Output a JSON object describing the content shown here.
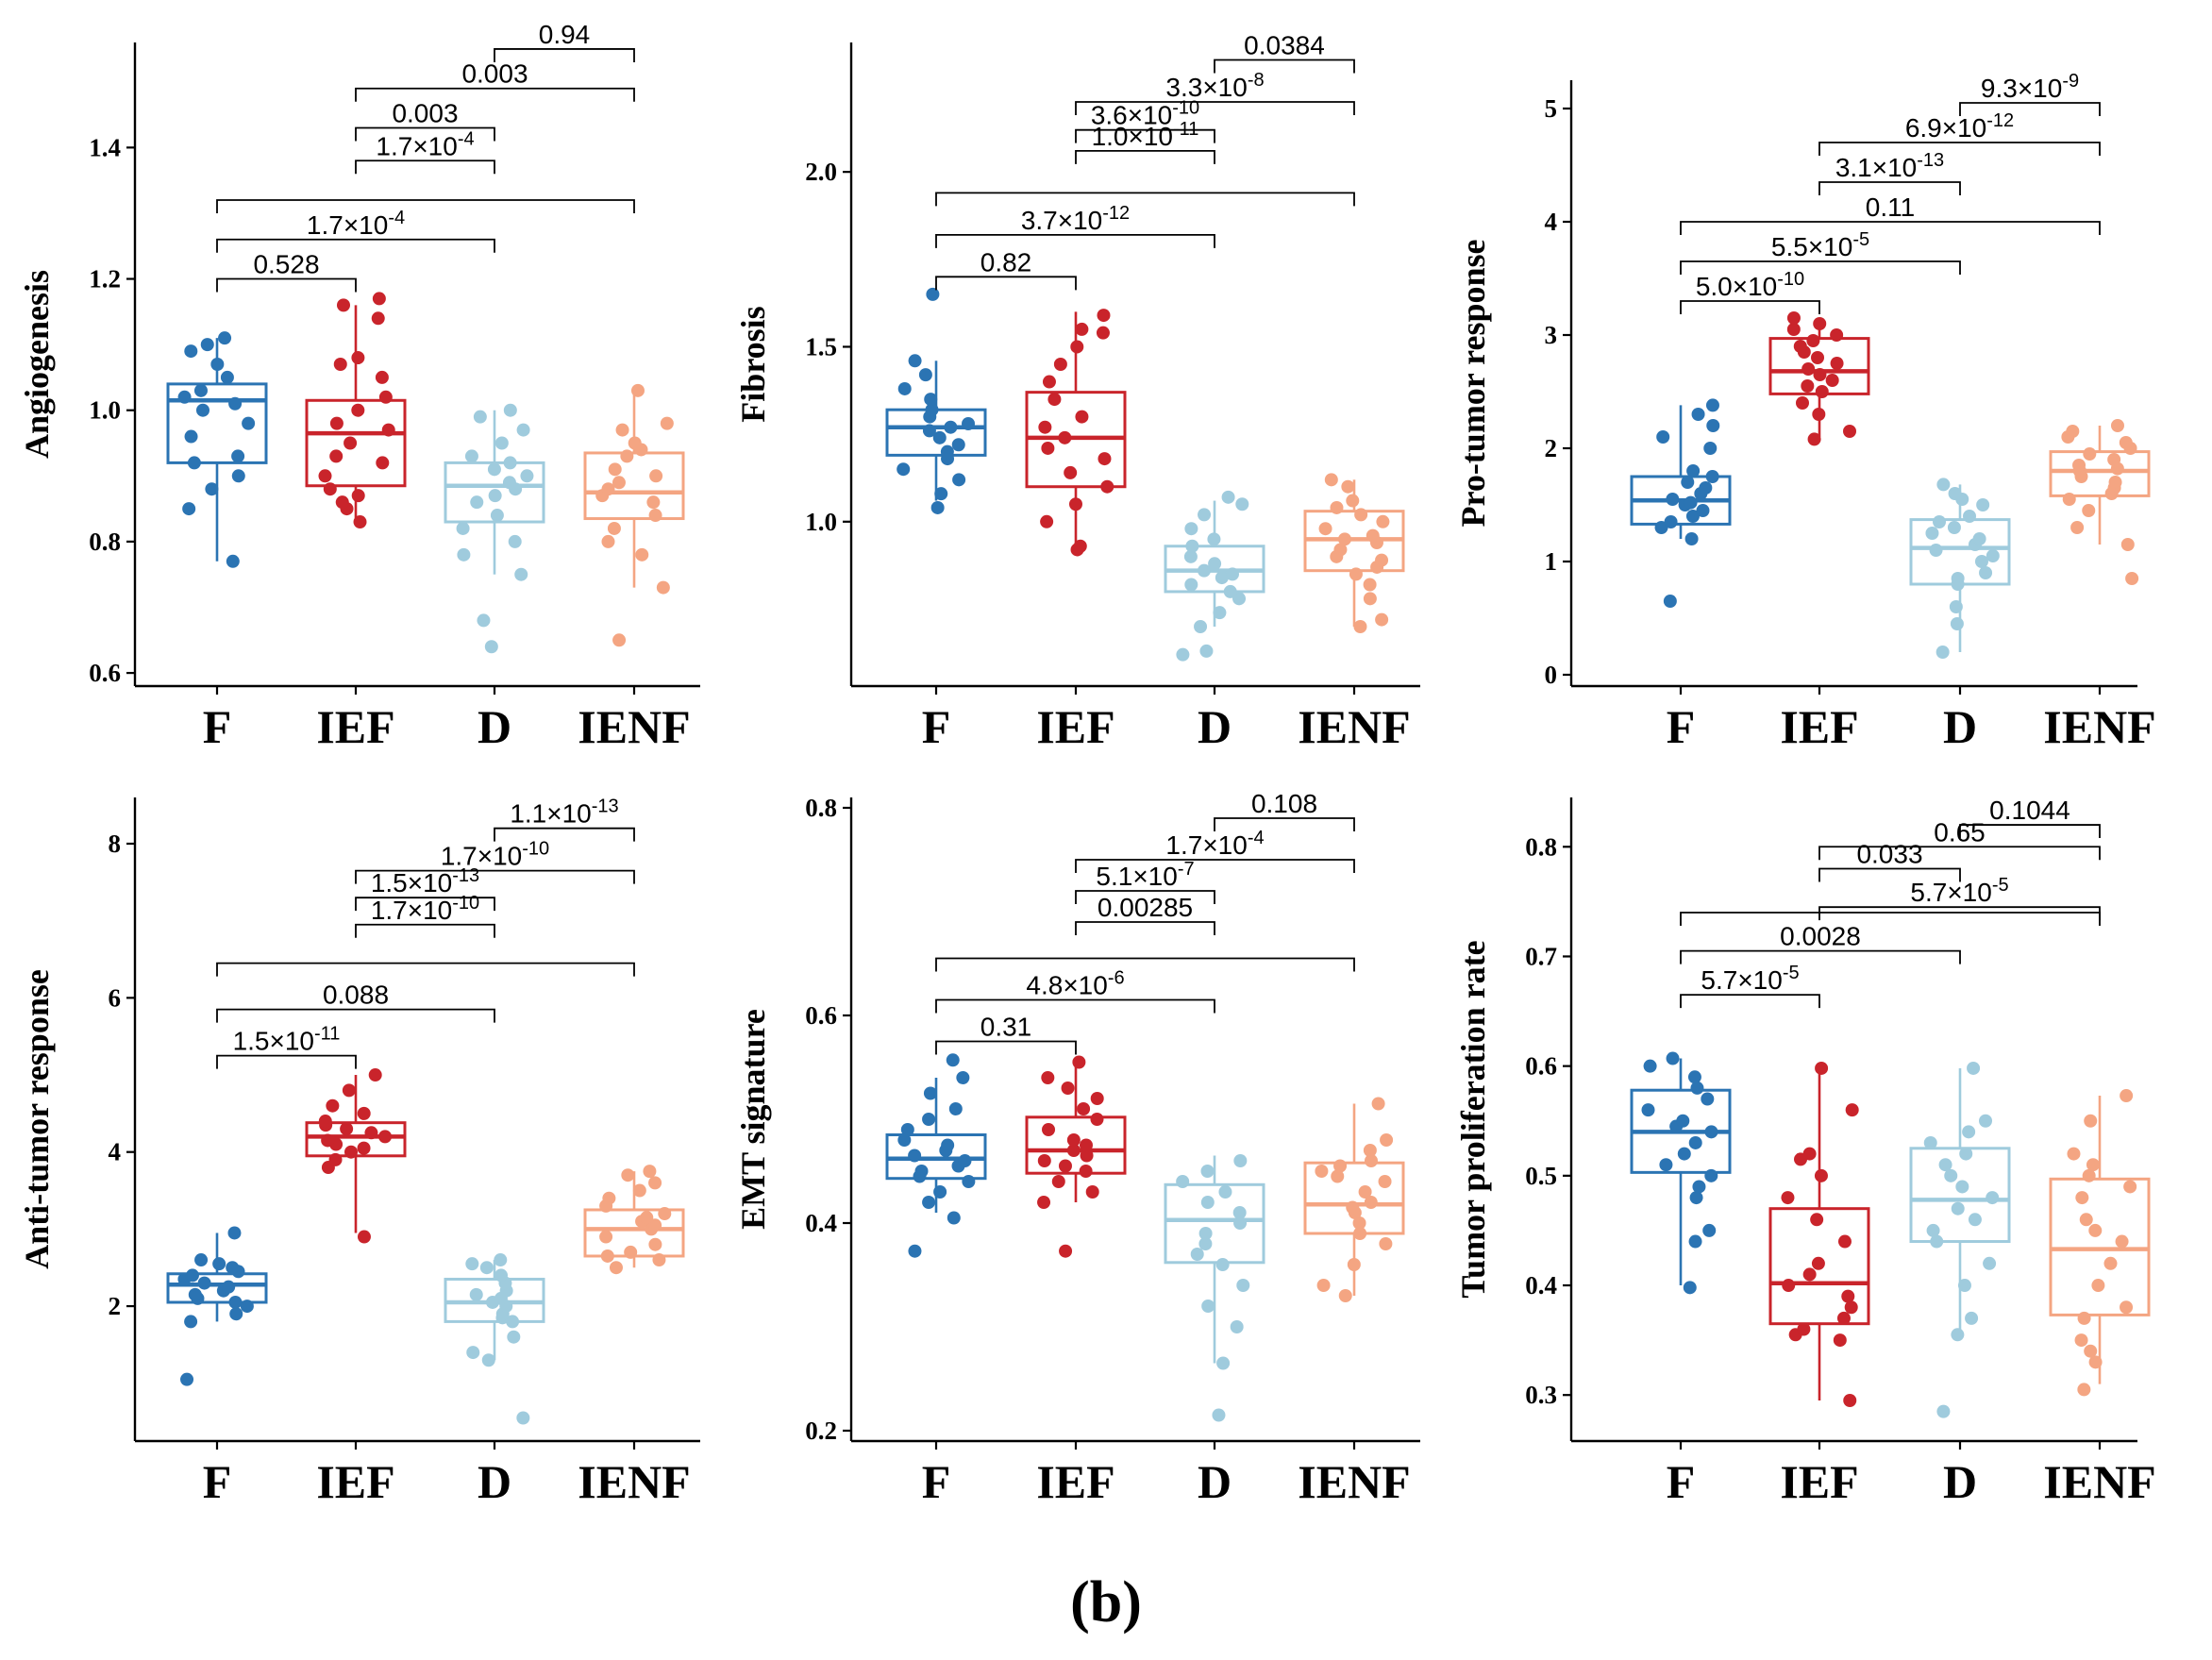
{
  "figure_label": "(b)",
  "colors": {
    "F": "#2b74b3",
    "IEF": "#c9242b",
    "D": "#9fcbdd",
    "IENF": "#f4a582",
    "axis": "#000000"
  },
  "chart_data": [
    {
      "type": "box",
      "title": "",
      "ylabel": "Angiogenesis",
      "categories": [
        "F",
        "IEF",
        "D",
        "IENF"
      ],
      "ylim": [
        0.58,
        1.56
      ],
      "yticks": [
        0.6,
        0.8,
        1.0,
        1.2,
        1.4
      ],
      "ytick_labels": [
        "0.6",
        "0.8",
        "1.0",
        "1.2",
        "1.4"
      ],
      "boxes": [
        {
          "group": "F",
          "whisker_low": 0.77,
          "q1": 0.92,
          "median": 1.015,
          "q3": 1.04,
          "whisker_high": 1.11
        },
        {
          "group": "IEF",
          "whisker_low": 0.83,
          "q1": 0.885,
          "median": 0.965,
          "q3": 1.015,
          "whisker_high": 1.16
        },
        {
          "group": "D",
          "whisker_low": 0.75,
          "q1": 0.83,
          "median": 0.885,
          "q3": 0.92,
          "whisker_high": 1.0
        },
        {
          "group": "IENF",
          "whisker_low": 0.73,
          "q1": 0.835,
          "median": 0.875,
          "q3": 0.935,
          "whisker_high": 1.03
        }
      ],
      "points": [
        [
          0.77,
          0.85,
          0.88,
          0.9,
          0.92,
          0.93,
          0.96,
          0.98,
          1.0,
          1.01,
          1.02,
          1.03,
          1.05,
          1.07,
          1.09,
          1.1,
          1.11
        ],
        [
          0.83,
          0.85,
          0.86,
          0.87,
          0.88,
          0.9,
          0.92,
          0.93,
          0.95,
          0.97,
          0.98,
          1.0,
          1.02,
          1.05,
          1.07,
          1.08,
          1.14,
          1.16,
          1.17
        ],
        [
          0.64,
          0.68,
          0.75,
          0.78,
          0.8,
          0.82,
          0.84,
          0.86,
          0.87,
          0.88,
          0.89,
          0.9,
          0.91,
          0.92,
          0.93,
          0.95,
          0.97,
          0.99,
          1.0
        ],
        [
          0.65,
          0.73,
          0.78,
          0.8,
          0.82,
          0.84,
          0.86,
          0.87,
          0.88,
          0.89,
          0.9,
          0.91,
          0.93,
          0.94,
          0.95,
          0.97,
          0.98,
          1.03
        ]
      ],
      "comparisons": [
        {
          "from": 0,
          "to": 1,
          "y": 1.2,
          "label": "0.528"
        },
        {
          "from": 0,
          "to": 2,
          "y": 1.26,
          "label": "1.7×10",
          "exp": "-4"
        },
        {
          "from": 0,
          "to": 3,
          "y": 1.32,
          "label": "",
          "exp": ""
        },
        {
          "from": 1,
          "to": 2,
          "y": 1.38,
          "label": "1.7×10",
          "exp": "-4"
        },
        {
          "from": 1,
          "to": 2,
          "y": 1.43,
          "label": "0.003"
        },
        {
          "from": 1,
          "to": 3,
          "y": 1.49,
          "label": "0.003"
        },
        {
          "from": 2,
          "to": 3,
          "y": 1.55,
          "label": "0.94"
        }
      ]
    },
    {
      "type": "box",
      "title": "",
      "ylabel": "Fibrosis",
      "categories": [
        "F",
        "IEF",
        "D",
        "IENF"
      ],
      "ylim": [
        0.53,
        2.37
      ],
      "yticks": [
        1.0,
        1.5,
        2.0
      ],
      "ytick_labels": [
        "1.0",
        "1.5",
        "2.0"
      ],
      "boxes": [
        {
          "group": "F",
          "whisker_low": 1.06,
          "q1": 1.19,
          "median": 1.27,
          "q3": 1.32,
          "whisker_high": 1.46
        },
        {
          "group": "IEF",
          "whisker_low": 0.93,
          "q1": 1.1,
          "median": 1.24,
          "q3": 1.37,
          "whisker_high": 1.6
        },
        {
          "group": "D",
          "whisker_low": 0.7,
          "q1": 0.8,
          "median": 0.86,
          "q3": 0.93,
          "whisker_high": 1.06
        },
        {
          "group": "IENF",
          "whisker_low": 0.7,
          "q1": 0.86,
          "median": 0.95,
          "q3": 1.03,
          "whisker_high": 1.12
        }
      ],
      "points": [
        [
          1.04,
          1.08,
          1.12,
          1.15,
          1.18,
          1.2,
          1.22,
          1.24,
          1.26,
          1.27,
          1.28,
          1.3,
          1.32,
          1.35,
          1.38,
          1.42,
          1.46,
          1.65
        ],
        [
          0.92,
          0.93,
          1.0,
          1.05,
          1.1,
          1.14,
          1.18,
          1.21,
          1.24,
          1.27,
          1.3,
          1.35,
          1.4,
          1.45,
          1.5,
          1.54,
          1.55,
          1.59
        ],
        [
          0.62,
          0.63,
          0.7,
          0.74,
          0.78,
          0.8,
          0.82,
          0.84,
          0.85,
          0.86,
          0.88,
          0.9,
          0.93,
          0.95,
          0.98,
          1.02,
          1.05,
          1.07
        ],
        [
          0.7,
          0.72,
          0.78,
          0.82,
          0.85,
          0.87,
          0.89,
          0.9,
          0.92,
          0.94,
          0.95,
          0.96,
          0.98,
          1.0,
          1.02,
          1.04,
          1.06,
          1.1,
          1.12
        ]
      ],
      "comparisons": [
        {
          "from": 0,
          "to": 1,
          "y": 1.7,
          "label": "0.82"
        },
        {
          "from": 0,
          "to": 2,
          "y": 1.82,
          "label": "3.7×10",
          "exp": "-12"
        },
        {
          "from": 0,
          "to": 3,
          "y": 1.94,
          "label": "",
          "exp": ""
        },
        {
          "from": 1,
          "to": 2,
          "y": 2.06,
          "label": "1.0×10",
          "exp": "-11"
        },
        {
          "from": 1,
          "to": 2,
          "y": 2.12,
          "label": "3.6×10",
          "exp": "-10"
        },
        {
          "from": 1,
          "to": 3,
          "y": 2.2,
          "label": "3.3×10",
          "exp": "-8"
        },
        {
          "from": 2,
          "to": 3,
          "y": 2.32,
          "label": "0.0384"
        }
      ]
    },
    {
      "type": "box",
      "title": "",
      "ylabel": "Pro-tumor response",
      "categories": [
        "F",
        "IEF",
        "D",
        "IENF"
      ],
      "ylim": [
        -0.1,
        5.25
      ],
      "yticks": [
        0,
        1,
        2,
        3,
        4,
        5
      ],
      "ytick_labels": [
        "0",
        "1",
        "2",
        "3",
        "4",
        "5"
      ],
      "boxes": [
        {
          "group": "F",
          "whisker_low": 1.2,
          "q1": 1.33,
          "median": 1.54,
          "q3": 1.75,
          "whisker_high": 2.38
        },
        {
          "group": "IEF",
          "whisker_low": 2.1,
          "q1": 2.48,
          "median": 2.68,
          "q3": 2.97,
          "whisker_high": 3.15
        },
        {
          "group": "D",
          "whisker_low": 0.2,
          "q1": 0.8,
          "median": 1.12,
          "q3": 1.37,
          "whisker_high": 1.68
        },
        {
          "group": "IENF",
          "whisker_low": 1.15,
          "q1": 1.58,
          "median": 1.8,
          "q3": 1.97,
          "whisker_high": 2.2
        }
      ],
      "points": [
        [
          0.65,
          1.2,
          1.3,
          1.35,
          1.4,
          1.45,
          1.5,
          1.52,
          1.55,
          1.6,
          1.65,
          1.7,
          1.75,
          1.8,
          2.0,
          2.1,
          2.2,
          2.3,
          2.38
        ],
        [
          2.08,
          2.15,
          2.3,
          2.4,
          2.5,
          2.55,
          2.6,
          2.65,
          2.7,
          2.75,
          2.8,
          2.85,
          2.9,
          2.95,
          3.0,
          3.05,
          3.1,
          3.15
        ],
        [
          0.2,
          0.45,
          0.6,
          0.8,
          0.85,
          0.9,
          1.0,
          1.05,
          1.1,
          1.15,
          1.2,
          1.25,
          1.3,
          1.35,
          1.4,
          1.5,
          1.55,
          1.6,
          1.68
        ],
        [
          0.85,
          1.15,
          1.3,
          1.45,
          1.55,
          1.6,
          1.65,
          1.7,
          1.75,
          1.8,
          1.82,
          1.85,
          1.9,
          1.95,
          2.0,
          2.05,
          2.1,
          2.15,
          2.2
        ]
      ],
      "comparisons": [
        {
          "from": 0,
          "to": 1,
          "y": 3.3,
          "label": "5.0×10",
          "exp": "-10"
        },
        {
          "from": 0,
          "to": 2,
          "y": 3.65,
          "label": "5.5×10",
          "exp": "-5"
        },
        {
          "from": 0,
          "to": 3,
          "y": 4.0,
          "label": "0.11"
        },
        {
          "from": 1,
          "to": 2,
          "y": 4.35,
          "label": "3.1×10",
          "exp": "-13"
        },
        {
          "from": 1,
          "to": 3,
          "y": 4.7,
          "label": "6.9×10",
          "exp": "-12"
        },
        {
          "from": 2,
          "to": 3,
          "y": 5.05,
          "label": "9.3×10",
          "exp": "-9"
        }
      ]
    },
    {
      "type": "box",
      "title": "",
      "ylabel": "Anti-tumor response",
      "categories": [
        "F",
        "IEF",
        "D",
        "IENF"
      ],
      "ylim": [
        0.25,
        8.6
      ],
      "yticks": [
        2,
        4,
        6,
        8
      ],
      "ytick_labels": [
        "2",
        "4",
        "6",
        "8"
      ],
      "boxes": [
        {
          "group": "F",
          "whisker_low": 1.8,
          "q1": 2.05,
          "median": 2.28,
          "q3": 2.42,
          "whisker_high": 2.95
        },
        {
          "group": "IEF",
          "whisker_low": 2.95,
          "q1": 3.95,
          "median": 4.2,
          "q3": 4.38,
          "whisker_high": 5.0
        },
        {
          "group": "D",
          "whisker_low": 1.3,
          "q1": 1.8,
          "median": 2.05,
          "q3": 2.35,
          "whisker_high": 2.6
        },
        {
          "group": "IENF",
          "whisker_low": 2.5,
          "q1": 2.65,
          "median": 3.0,
          "q3": 3.25,
          "whisker_high": 3.75
        }
      ],
      "points": [
        [
          1.05,
          1.8,
          1.9,
          2.0,
          2.05,
          2.1,
          2.15,
          2.2,
          2.25,
          2.3,
          2.35,
          2.4,
          2.45,
          2.5,
          2.55,
          2.6,
          2.95
        ],
        [
          2.9,
          3.8,
          3.9,
          4.0,
          4.05,
          4.1,
          4.15,
          4.2,
          4.25,
          4.3,
          4.35,
          4.4,
          4.5,
          4.6,
          4.8,
          5.0
        ],
        [
          0.55,
          1.3,
          1.4,
          1.6,
          1.8,
          1.85,
          1.9,
          2.0,
          2.05,
          2.1,
          2.15,
          2.2,
          2.3,
          2.4,
          2.5,
          2.55,
          2.6
        ],
        [
          2.5,
          2.6,
          2.65,
          2.7,
          2.8,
          2.9,
          3.0,
          3.05,
          3.1,
          3.15,
          3.2,
          3.3,
          3.4,
          3.5,
          3.6,
          3.7,
          3.75
        ]
      ],
      "comparisons": [
        {
          "from": 0,
          "to": 1,
          "y": 5.25,
          "label": "1.5×10",
          "exp": "-11"
        },
        {
          "from": 0,
          "to": 2,
          "y": 5.85,
          "label": "0.088"
        },
        {
          "from": 0,
          "to": 3,
          "y": 6.45,
          "label": "",
          "exp": ""
        },
        {
          "from": 1,
          "to": 2,
          "y": 6.95,
          "label": "1.7×10",
          "exp": "-10"
        },
        {
          "from": 1,
          "to": 2,
          "y": 7.3,
          "label": "1.5×10",
          "exp": "-13"
        },
        {
          "from": 1,
          "to": 3,
          "y": 7.65,
          "label": "1.7×10",
          "exp": "-10"
        },
        {
          "from": 2,
          "to": 3,
          "y": 8.2,
          "label": "1.1×10",
          "exp": "-13"
        }
      ]
    },
    {
      "type": "box",
      "title": "",
      "ylabel": "EMT signature",
      "categories": [
        "F",
        "IEF",
        "D",
        "IENF"
      ],
      "ylim": [
        0.19,
        0.81
      ],
      "yticks": [
        0.2,
        0.4,
        0.6,
        0.8
      ],
      "ytick_labels": [
        "0.2",
        "0.4",
        "0.6",
        "0.8"
      ],
      "boxes": [
        {
          "group": "F",
          "whisker_low": 0.41,
          "q1": 0.443,
          "median": 0.462,
          "q3": 0.485,
          "whisker_high": 0.54
        },
        {
          "group": "IEF",
          "whisker_low": 0.42,
          "q1": 0.448,
          "median": 0.47,
          "q3": 0.502,
          "whisker_high": 0.555
        },
        {
          "group": "D",
          "whisker_low": 0.265,
          "q1": 0.362,
          "median": 0.403,
          "q3": 0.437,
          "whisker_high": 0.465
        },
        {
          "group": "IENF",
          "whisker_low": 0.33,
          "q1": 0.39,
          "median": 0.418,
          "q3": 0.458,
          "whisker_high": 0.515
        }
      ],
      "points": [
        [
          0.373,
          0.405,
          0.42,
          0.43,
          0.44,
          0.445,
          0.45,
          0.455,
          0.46,
          0.465,
          0.47,
          0.475,
          0.48,
          0.49,
          0.5,
          0.51,
          0.525,
          0.54,
          0.557
        ],
        [
          0.373,
          0.42,
          0.43,
          0.44,
          0.45,
          0.455,
          0.46,
          0.465,
          0.47,
          0.475,
          0.48,
          0.49,
          0.5,
          0.51,
          0.52,
          0.53,
          0.54,
          0.555
        ],
        [
          0.215,
          0.265,
          0.3,
          0.32,
          0.34,
          0.36,
          0.37,
          0.38,
          0.39,
          0.4,
          0.41,
          0.42,
          0.43,
          0.44,
          0.45,
          0.46
        ],
        [
          0.33,
          0.34,
          0.36,
          0.38,
          0.39,
          0.4,
          0.41,
          0.415,
          0.42,
          0.43,
          0.44,
          0.445,
          0.45,
          0.455,
          0.46,
          0.47,
          0.48,
          0.515
        ]
      ],
      "comparisons": [
        {
          "from": 0,
          "to": 1,
          "y": 0.575,
          "label": "0.31"
        },
        {
          "from": 0,
          "to": 2,
          "y": 0.615,
          "label": "4.8×10",
          "exp": "-6"
        },
        {
          "from": 0,
          "to": 3,
          "y": 0.655,
          "label": "",
          "exp": ""
        },
        {
          "from": 1,
          "to": 2,
          "y": 0.69,
          "label": "0.00285"
        },
        {
          "from": 1,
          "to": 2,
          "y": 0.72,
          "label": "5.1×10",
          "exp": "-7"
        },
        {
          "from": 1,
          "to": 3,
          "y": 0.75,
          "label": "1.7×10",
          "exp": "-4"
        },
        {
          "from": 2,
          "to": 3,
          "y": 0.79,
          "label": "0.108"
        }
      ]
    },
    {
      "type": "box",
      "title": "",
      "ylabel": "Tumor proliferation rate",
      "categories": [
        "F",
        "IEF",
        "D",
        "IENF"
      ],
      "ylim": [
        0.258,
        0.845
      ],
      "yticks": [
        0.3,
        0.4,
        0.5,
        0.6,
        0.7,
        0.8
      ],
      "ytick_labels": [
        "0.3",
        "0.4",
        "0.5",
        "0.6",
        "0.7",
        "0.8"
      ],
      "boxes": [
        {
          "group": "F",
          "whisker_low": 0.4,
          "q1": 0.503,
          "median": 0.54,
          "q3": 0.578,
          "whisker_high": 0.607
        },
        {
          "group": "IEF",
          "whisker_low": 0.295,
          "q1": 0.365,
          "median": 0.402,
          "q3": 0.47,
          "whisker_high": 0.595
        },
        {
          "group": "D",
          "whisker_low": 0.355,
          "q1": 0.44,
          "median": 0.478,
          "q3": 0.525,
          "whisker_high": 0.598
        },
        {
          "group": "IENF",
          "whisker_low": 0.31,
          "q1": 0.373,
          "median": 0.433,
          "q3": 0.497,
          "whisker_high": 0.573
        }
      ],
      "points": [
        [
          0.398,
          0.44,
          0.45,
          0.48,
          0.49,
          0.5,
          0.51,
          0.52,
          0.53,
          0.54,
          0.545,
          0.55,
          0.56,
          0.57,
          0.58,
          0.59,
          0.6,
          0.607
        ],
        [
          0.295,
          0.35,
          0.355,
          0.36,
          0.37,
          0.38,
          0.39,
          0.4,
          0.41,
          0.42,
          0.44,
          0.46,
          0.48,
          0.5,
          0.515,
          0.52,
          0.56,
          0.598
        ],
        [
          0.285,
          0.355,
          0.37,
          0.4,
          0.42,
          0.44,
          0.45,
          0.46,
          0.47,
          0.48,
          0.49,
          0.5,
          0.51,
          0.52,
          0.53,
          0.54,
          0.55,
          0.598
        ],
        [
          0.305,
          0.33,
          0.34,
          0.35,
          0.37,
          0.38,
          0.4,
          0.42,
          0.44,
          0.45,
          0.46,
          0.48,
          0.49,
          0.5,
          0.51,
          0.52,
          0.55,
          0.573
        ]
      ],
      "comparisons": [
        {
          "from": 0,
          "to": 1,
          "y": 0.665,
          "label": "5.7×10",
          "exp": "-5"
        },
        {
          "from": 0,
          "to": 2,
          "y": 0.705,
          "label": "0.0028"
        },
        {
          "from": 0,
          "to": 3,
          "y": 0.74,
          "label": "",
          "exp": ""
        },
        {
          "from": 1,
          "to": 2,
          "y": 0.78,
          "label": "0.033"
        },
        {
          "from": 1,
          "to": 3,
          "y": 0.745,
          "label": "5.7×10",
          "exp": "-5"
        },
        {
          "from": 1,
          "to": 3,
          "y": 0.8,
          "label": "0.65"
        },
        {
          "from": 2,
          "to": 3,
          "y": 0.82,
          "label": "0.1044"
        }
      ]
    }
  ]
}
